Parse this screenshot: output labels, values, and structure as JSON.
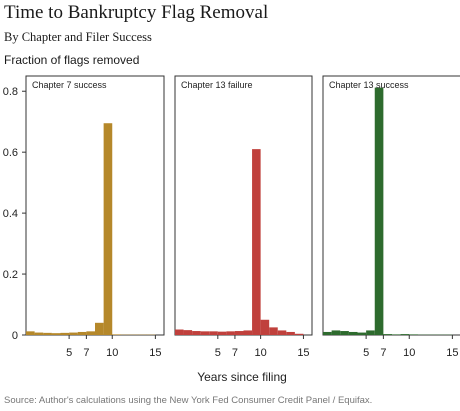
{
  "title": "Time to Bankruptcy Flag Removal",
  "subtitle": "By Chapter and Filer Success",
  "ylabel": "Fraction of flags removed",
  "xlabel": "Years since filing",
  "source": "Source: Author's calculations using the New York Fed Consumer Credit Panel / Equifax.",
  "chart_data": {
    "type": "bar",
    "ylim": [
      0,
      0.85
    ],
    "xlim": [
      0,
      16
    ],
    "yticks": [
      0,
      0.2,
      0.4,
      0.6,
      0.8
    ],
    "ytick_labels": [
      "0",
      "0.2",
      "0.4",
      "0.6",
      "0.8"
    ],
    "xticks": [
      5,
      7,
      10,
      15
    ],
    "xtick_labels": [
      "5",
      "7",
      "10",
      "15"
    ],
    "grid": false,
    "panels": [
      {
        "label": "Chapter 7 success",
        "color": "#b5882a",
        "x": [
          1,
          2,
          3,
          4,
          5,
          6,
          7,
          8,
          9,
          10,
          11,
          12,
          13,
          14,
          15
        ],
        "values": [
          0.012,
          0.008,
          0.007,
          0.006,
          0.007,
          0.008,
          0.01,
          0.012,
          0.04,
          0.695,
          0.002,
          0.001,
          0.001,
          0.001,
          0.001
        ]
      },
      {
        "label": "Chapter 13 failure",
        "color": "#c0403c",
        "x": [
          1,
          2,
          3,
          4,
          5,
          6,
          7,
          8,
          9,
          10,
          11,
          12,
          13,
          14,
          15
        ],
        "values": [
          0.018,
          0.016,
          0.013,
          0.012,
          0.012,
          0.011,
          0.012,
          0.013,
          0.015,
          0.61,
          0.05,
          0.025,
          0.015,
          0.01,
          0.004
        ]
      },
      {
        "label": "Chapter 13 success",
        "color": "#2e6b2e",
        "x": [
          1,
          2,
          3,
          4,
          5,
          6,
          7,
          8,
          9,
          10,
          11,
          12,
          13,
          14,
          15
        ],
        "values": [
          0.01,
          0.015,
          0.013,
          0.01,
          0.008,
          0.015,
          0.812,
          0.003,
          0.002,
          0.003,
          0.002,
          0.001,
          0.001,
          0.001,
          0.001
        ]
      }
    ]
  }
}
